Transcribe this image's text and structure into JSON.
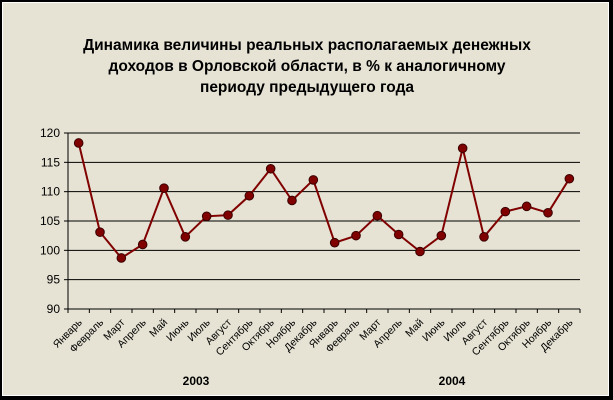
{
  "chart_data": {
    "type": "line",
    "title_lines": [
      "Динамика величины реальных располагаемых денежных",
      "доходов в Орловской области, в % к аналогичному",
      "периоду предыдущего года"
    ],
    "categories": [
      "Январь",
      "Февраль",
      "Март",
      "Апрель",
      "Май",
      "Июнь",
      "Июль",
      "Август",
      "Сентябрь",
      "Октябрь",
      "Ноябрь",
      "Декабрь",
      "Январь",
      "Февраль",
      "Март",
      "Апрель",
      "Май",
      "Июнь",
      "Июль",
      "Август",
      "Сентябрь",
      "Октябрь",
      "Ноябрь",
      "Декабрь"
    ],
    "groups": [
      {
        "label": "2003",
        "start": 0,
        "end": 11
      },
      {
        "label": "2004",
        "start": 12,
        "end": 23
      }
    ],
    "series": [
      {
        "values": [
          118.3,
          103.1,
          98.7,
          101.0,
          110.6,
          102.3,
          105.8,
          106.0,
          109.3,
          113.9,
          108.5,
          112.0,
          101.3,
          102.5,
          105.9,
          102.7,
          99.8,
          102.5,
          117.4,
          102.3,
          106.6,
          107.5,
          106.4,
          112.2
        ],
        "color": "#800000"
      }
    ],
    "ylim": [
      90,
      120
    ],
    "yticks": [
      "90",
      "95",
      "100",
      "105",
      "110",
      "115",
      "120"
    ],
    "grid": true,
    "legend": "none",
    "plot_background": "#e6e3d4",
    "line_color": "#800000"
  }
}
